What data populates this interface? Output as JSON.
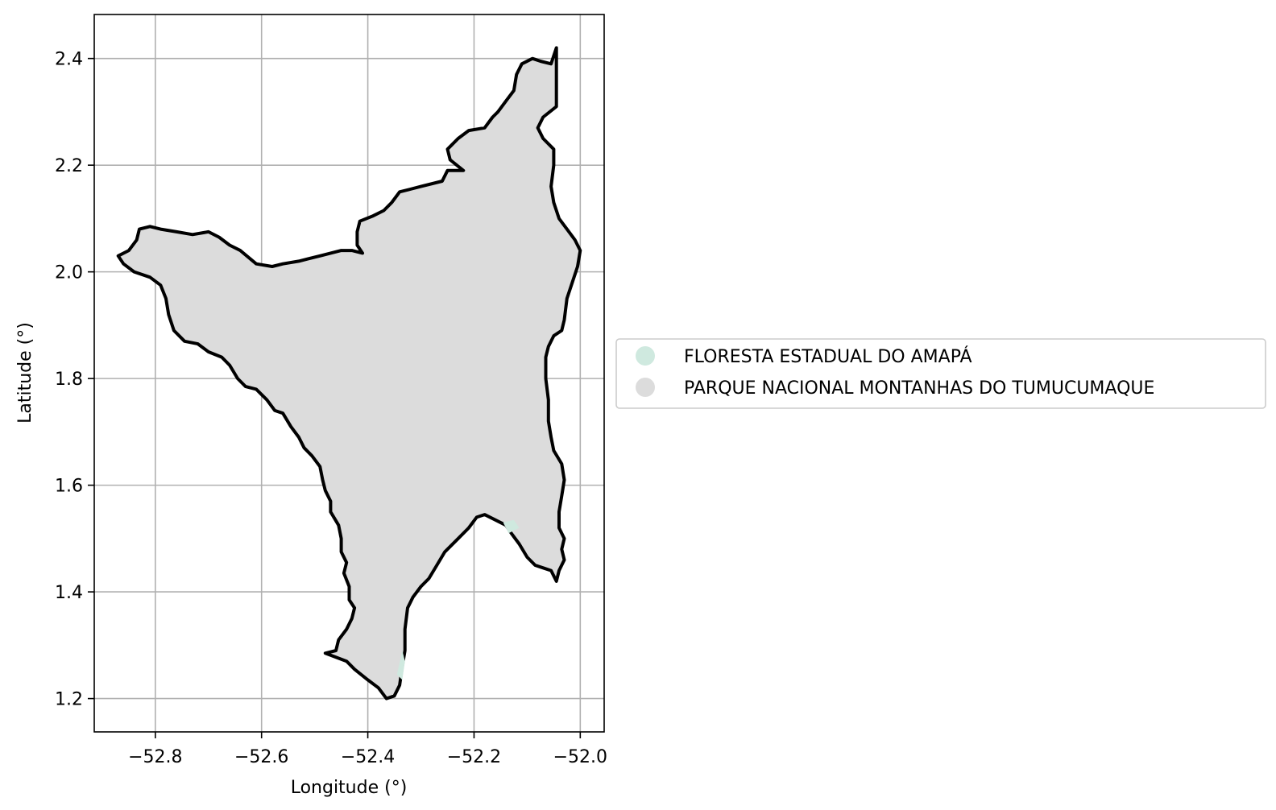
{
  "chart_data": {
    "type": "map",
    "xlabel": "Longitude (°)",
    "ylabel": "Latitude (°)",
    "xlim": [
      -52.915,
      -51.955
    ],
    "ylim": [
      1.1375,
      2.4825
    ],
    "x_ticks": [
      -52.8,
      -52.6,
      -52.4,
      -52.2,
      -52.0
    ],
    "x_tick_labels": [
      "−52.8",
      "−52.6",
      "−52.4",
      "−52.2",
      "−52.0"
    ],
    "y_ticks": [
      1.2,
      1.4,
      1.6,
      1.8,
      2.0,
      2.2,
      2.4
    ],
    "y_tick_labels": [
      "1.2",
      "1.4",
      "1.6",
      "1.8",
      "2.0",
      "2.2",
      "2.4"
    ],
    "grid": true,
    "legend_position": "center-left outside plot",
    "legend": [
      {
        "label": "FLORESTA ESTADUAL DO AMAPÁ",
        "color": "#cfe9df"
      },
      {
        "label": "PARQUE NACIONAL MONTANHAS DO TUMUCUMAQUE",
        "color": "#dcdcdc"
      }
    ],
    "regions": [
      {
        "name": "PARQUE NACIONAL MONTANHAS DO TUMUCUMAQUE",
        "fill": "#dcdcdc",
        "outline": "#000000",
        "boundary": [
          [
            -52.045,
            2.42
          ],
          [
            -52.055,
            2.39
          ],
          [
            -52.075,
            2.395
          ],
          [
            -52.09,
            2.4
          ],
          [
            -52.11,
            2.39
          ],
          [
            -52.12,
            2.37
          ],
          [
            -52.125,
            2.34
          ],
          [
            -52.14,
            2.32
          ],
          [
            -52.155,
            2.3
          ],
          [
            -52.165,
            2.29
          ],
          [
            -52.18,
            2.27
          ],
          [
            -52.21,
            2.265
          ],
          [
            -52.23,
            2.25
          ],
          [
            -52.25,
            2.23
          ],
          [
            -52.245,
            2.21
          ],
          [
            -52.22,
            2.19
          ],
          [
            -52.25,
            2.19
          ],
          [
            -52.26,
            2.17
          ],
          [
            -52.3,
            2.16
          ],
          [
            -52.32,
            2.155
          ],
          [
            -52.34,
            2.15
          ],
          [
            -52.355,
            2.13
          ],
          [
            -52.37,
            2.115
          ],
          [
            -52.39,
            2.105
          ],
          [
            -52.415,
            2.095
          ],
          [
            -52.42,
            2.075
          ],
          [
            -52.42,
            2.05
          ],
          [
            -52.41,
            2.035
          ],
          [
            -52.43,
            2.04
          ],
          [
            -52.45,
            2.04
          ],
          [
            -52.47,
            2.035
          ],
          [
            -52.49,
            2.03
          ],
          [
            -52.51,
            2.025
          ],
          [
            -52.53,
            2.02
          ],
          [
            -52.56,
            2.015
          ],
          [
            -52.58,
            2.01
          ],
          [
            -52.61,
            2.015
          ],
          [
            -52.64,
            2.04
          ],
          [
            -52.66,
            2.05
          ],
          [
            -52.68,
            2.065
          ],
          [
            -52.7,
            2.075
          ],
          [
            -52.73,
            2.07
          ],
          [
            -52.76,
            2.075
          ],
          [
            -52.79,
            2.08
          ],
          [
            -52.81,
            2.085
          ],
          [
            -52.83,
            2.08
          ],
          [
            -52.835,
            2.06
          ],
          [
            -52.85,
            2.04
          ],
          [
            -52.87,
            2.03
          ],
          [
            -52.86,
            2.015
          ],
          [
            -52.84,
            2.0
          ],
          [
            -52.81,
            1.99
          ],
          [
            -52.79,
            1.975
          ],
          [
            -52.78,
            1.95
          ],
          [
            -52.775,
            1.92
          ],
          [
            -52.765,
            1.89
          ],
          [
            -52.745,
            1.87
          ],
          [
            -52.72,
            1.865
          ],
          [
            -52.7,
            1.85
          ],
          [
            -52.675,
            1.84
          ],
          [
            -52.66,
            1.825
          ],
          [
            -52.645,
            1.8
          ],
          [
            -52.63,
            1.785
          ],
          [
            -52.61,
            1.78
          ],
          [
            -52.59,
            1.76
          ],
          [
            -52.575,
            1.74
          ],
          [
            -52.56,
            1.735
          ],
          [
            -52.545,
            1.71
          ],
          [
            -52.53,
            1.69
          ],
          [
            -52.52,
            1.67
          ],
          [
            -52.505,
            1.655
          ],
          [
            -52.49,
            1.635
          ],
          [
            -52.485,
            1.61
          ],
          [
            -52.48,
            1.59
          ],
          [
            -52.47,
            1.57
          ],
          [
            -52.47,
            1.55
          ],
          [
            -52.455,
            1.525
          ],
          [
            -52.45,
            1.5
          ],
          [
            -52.45,
            1.475
          ],
          [
            -52.44,
            1.455
          ],
          [
            -52.445,
            1.435
          ],
          [
            -52.435,
            1.41
          ],
          [
            -52.435,
            1.385
          ],
          [
            -52.425,
            1.37
          ],
          [
            -52.43,
            1.35
          ],
          [
            -52.44,
            1.33
          ],
          [
            -52.455,
            1.31
          ],
          [
            -52.46,
            1.29
          ],
          [
            -52.48,
            1.285
          ],
          [
            -52.44,
            1.27
          ],
          [
            -52.425,
            1.255
          ],
          [
            -52.4,
            1.235
          ],
          [
            -52.38,
            1.22
          ],
          [
            -52.365,
            1.2
          ],
          [
            -52.35,
            1.205
          ],
          [
            -52.34,
            1.225
          ],
          [
            -52.335,
            1.26
          ],
          [
            -52.33,
            1.29
          ],
          [
            -52.33,
            1.33
          ],
          [
            -52.325,
            1.37
          ],
          [
            -52.315,
            1.39
          ],
          [
            -52.3,
            1.41
          ],
          [
            -52.285,
            1.425
          ],
          [
            -52.27,
            1.45
          ],
          [
            -52.255,
            1.475
          ],
          [
            -52.23,
            1.5
          ],
          [
            -52.21,
            1.52
          ],
          [
            -52.195,
            1.54
          ],
          [
            -52.18,
            1.545
          ],
          [
            -52.16,
            1.535
          ],
          [
            -52.14,
            1.525
          ],
          [
            -52.13,
            1.51
          ],
          [
            -52.115,
            1.49
          ],
          [
            -52.1,
            1.465
          ],
          [
            -52.085,
            1.45
          ],
          [
            -52.07,
            1.445
          ],
          [
            -52.055,
            1.44
          ],
          [
            -52.045,
            1.42
          ],
          [
            -52.04,
            1.44
          ],
          [
            -52.03,
            1.46
          ],
          [
            -52.035,
            1.48
          ],
          [
            -52.03,
            1.5
          ],
          [
            -52.04,
            1.52
          ],
          [
            -52.04,
            1.55
          ],
          [
            -52.035,
            1.58
          ],
          [
            -52.03,
            1.61
          ],
          [
            -52.035,
            1.64
          ],
          [
            -52.05,
            1.665
          ],
          [
            -52.055,
            1.69
          ],
          [
            -52.06,
            1.72
          ],
          [
            -52.06,
            1.76
          ],
          [
            -52.065,
            1.8
          ],
          [
            -52.065,
            1.84
          ],
          [
            -52.06,
            1.86
          ],
          [
            -52.05,
            1.88
          ],
          [
            -52.035,
            1.89
          ],
          [
            -52.03,
            1.91
          ],
          [
            -52.025,
            1.95
          ],
          [
            -52.015,
            1.98
          ],
          [
            -52.005,
            2.01
          ],
          [
            -52.0,
            2.04
          ],
          [
            -52.01,
            2.06
          ],
          [
            -52.025,
            2.08
          ],
          [
            -52.04,
            2.1
          ],
          [
            -52.05,
            2.13
          ],
          [
            -52.055,
            2.16
          ],
          [
            -52.05,
            2.2
          ],
          [
            -52.05,
            2.23
          ],
          [
            -52.07,
            2.25
          ],
          [
            -52.08,
            2.27
          ],
          [
            -52.07,
            2.29
          ],
          [
            -52.045,
            2.31
          ],
          [
            -52.045,
            2.34
          ],
          [
            -52.045,
            2.37
          ],
          [
            -52.045,
            2.42
          ]
        ]
      },
      {
        "name": "FLORESTA ESTADUAL DO AMAPÁ",
        "fill": "#cfe9df",
        "outline": "none",
        "boundary": [
          [
            -52.145,
            1.53
          ],
          [
            -52.125,
            1.535
          ],
          [
            -52.115,
            1.52
          ],
          [
            -52.135,
            1.51
          ]
        ]
      },
      {
        "name": "FLORESTA ESTADUAL DO AMAPÁ",
        "fill": "#cfe9df",
        "outline": "none",
        "boundary": [
          [
            -52.345,
            1.245
          ],
          [
            -52.335,
            1.29
          ],
          [
            -52.33,
            1.27
          ],
          [
            -52.335,
            1.235
          ]
        ]
      }
    ]
  }
}
